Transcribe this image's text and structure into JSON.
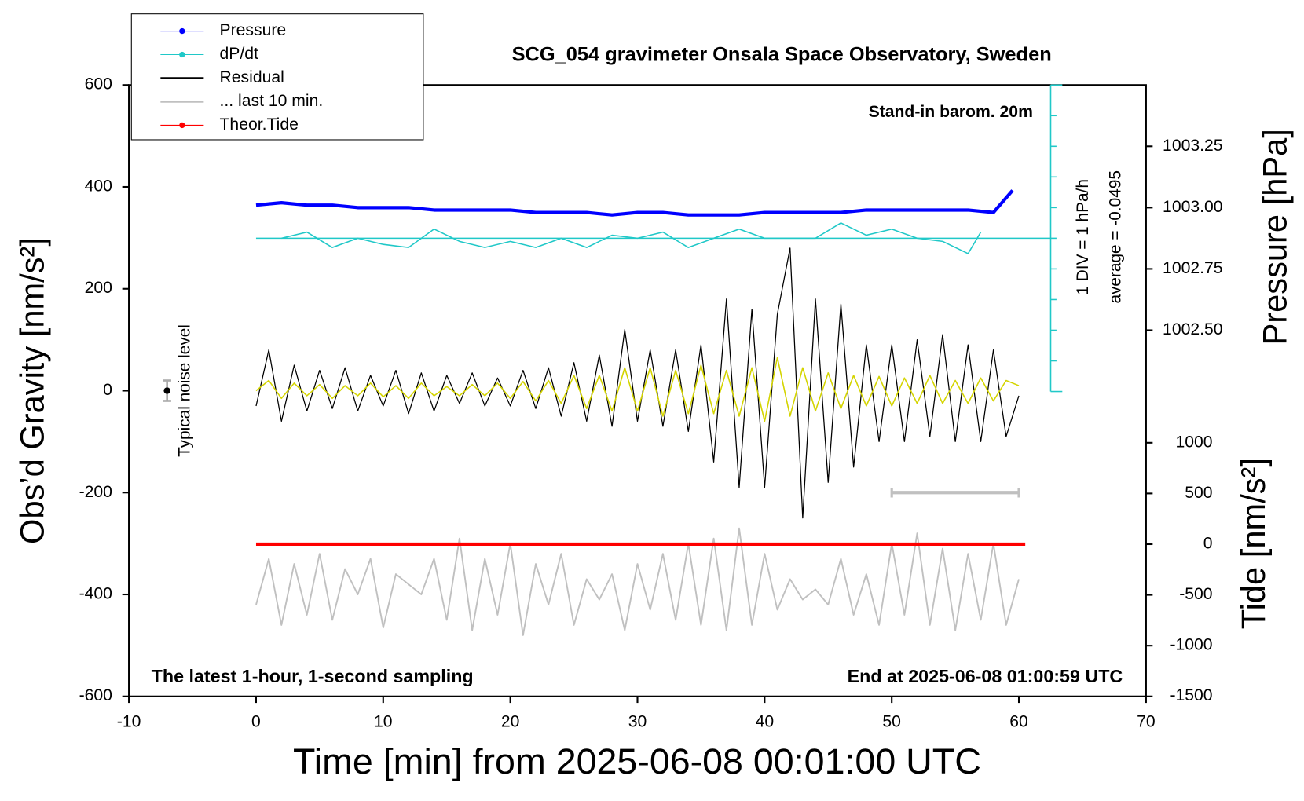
{
  "chart_data": {
    "type": "line",
    "title": "SCG_054 gravimeter Onsala Space Observatory, Sweden",
    "x_label": "Time [min] from 2025-06-08 00:01:00 UTC",
    "y_label": "Obs’d Gravity [nm/s²]",
    "y2_label": "Pressure [hPa]",
    "y3_label": "Tide [nm/s²]",
    "annotations": {
      "barometer": "Stand-in barom. 20m",
      "division": "1 DIV = 1 hPa/h",
      "average": "average = -0.0495",
      "noise": "Typical noise level",
      "sampling": "The latest 1-hour, 1-second sampling",
      "end": "End at 2025-06-08 01:00:59 UTC"
    },
    "xlim": [
      -10,
      70
    ],
    "xticks": [
      -10,
      0,
      10,
      20,
      30,
      40,
      50,
      60,
      70
    ],
    "ylim": [
      -600,
      600
    ],
    "yticks": [
      -600,
      -400,
      -200,
      0,
      200,
      400,
      600
    ],
    "y2lim": [
      1002.25,
      1003.5
    ],
    "y2ticks": [
      {
        "value": 1002.5,
        "label": "1002.50"
      },
      1002.75,
      {
        "value": 1003,
        "label": "1003.00"
      },
      1003.25
    ],
    "y3lim": [
      -1500,
      1000
    ],
    "y3ticks": [
      -1500,
      -1000,
      -500,
      0,
      500,
      1000
    ],
    "dpdt_lim": [
      -5,
      5
    ],
    "dpdt_ticks": [
      -5,
      -4,
      -3,
      -2,
      -1,
      0,
      1,
      2,
      3,
      4,
      5
    ],
    "noise_bar": {
      "x": -7,
      "value": 0,
      "error": 20
    },
    "window_bar": {
      "x": [
        50,
        60
      ],
      "value": -200
    },
    "series": [
      {
        "name": "Pressure",
        "color": "#0000ff",
        "axis": "y2",
        "marker": true,
        "x": [
          0,
          2,
          4,
          6,
          8,
          10,
          12,
          14,
          16,
          18,
          20,
          22,
          24,
          26,
          28,
          30,
          32,
          34,
          36,
          38,
          40,
          42,
          44,
          46,
          48,
          50,
          52,
          54,
          56,
          58,
          59.5
        ],
        "values": [
          1003.01,
          1003.02,
          1003.01,
          1003.01,
          1003.0,
          1003.0,
          1003.0,
          1002.99,
          1002.99,
          1002.99,
          1002.99,
          1002.98,
          1002.98,
          1002.98,
          1002.97,
          1002.98,
          1002.98,
          1002.97,
          1002.97,
          1002.97,
          1002.98,
          1002.98,
          1002.98,
          1002.98,
          1002.99,
          1002.99,
          1002.99,
          1002.99,
          1002.99,
          1002.98,
          1003.07
        ]
      },
      {
        "name": "dP/dt",
        "color": "#20c8c8",
        "axis": "dpdt",
        "marker": true,
        "x": [
          2,
          4,
          6,
          8,
          10,
          12,
          14,
          16,
          18,
          20,
          22,
          24,
          26,
          28,
          30,
          32,
          34,
          36,
          38,
          40,
          42,
          44,
          46,
          48,
          50,
          52,
          54,
          56,
          57
        ],
        "values": [
          0,
          0.2,
          -0.3,
          0,
          -0.2,
          -0.3,
          0.3,
          -0.1,
          -0.3,
          -0.1,
          -0.3,
          0,
          -0.3,
          0.1,
          0,
          0.2,
          -0.3,
          0,
          0.3,
          0,
          0,
          0,
          0.5,
          0.1,
          0.3,
          0,
          -0.1,
          -0.5,
          0.2
        ]
      },
      {
        "name": "Residual",
        "color": "#000000",
        "axis": "y",
        "x": [
          0,
          1,
          2,
          3,
          4,
          5,
          6,
          7,
          8,
          9,
          10,
          11,
          12,
          13,
          14,
          15,
          16,
          17,
          18,
          19,
          20,
          21,
          22,
          23,
          24,
          25,
          26,
          27,
          28,
          29,
          30,
          31,
          32,
          33,
          34,
          35,
          36,
          37,
          38,
          39,
          40,
          41,
          42,
          43,
          44,
          45,
          46,
          47,
          48,
          49,
          50,
          51,
          52,
          53,
          54,
          55,
          56,
          57,
          58,
          59,
          60
        ],
        "values": [
          -30,
          80,
          -60,
          50,
          -40,
          40,
          -35,
          45,
          -40,
          30,
          -30,
          40,
          -45,
          35,
          -40,
          30,
          -25,
          35,
          -30,
          25,
          -30,
          40,
          -35,
          45,
          -50,
          55,
          -60,
          70,
          -70,
          120,
          -60,
          80,
          -70,
          80,
          -80,
          90,
          -140,
          180,
          -190,
          160,
          -190,
          150,
          280,
          -250,
          180,
          -180,
          170,
          -150,
          90,
          -100,
          90,
          -100,
          100,
          -90,
          110,
          -100,
          90,
          -100,
          80,
          -90,
          -10
        ]
      },
      {
        "name": "... last 10 min.",
        "color": "#c0c0c0",
        "axis": "y",
        "x": [
          0,
          1,
          2,
          3,
          4,
          5,
          6,
          7,
          8,
          9,
          10,
          11,
          12,
          13,
          14,
          15,
          16,
          17,
          18,
          19,
          20,
          21,
          22,
          23,
          24,
          25,
          26,
          27,
          28,
          29,
          30,
          31,
          32,
          33,
          34,
          35,
          36,
          37,
          38,
          39,
          40,
          41,
          42,
          43,
          44,
          45,
          46,
          47,
          48,
          49,
          50,
          51,
          52,
          53,
          54,
          55,
          56,
          57,
          58,
          59,
          60
        ],
        "values": [
          -420,
          -330,
          -460,
          -340,
          -440,
          -320,
          -450,
          -350,
          -400,
          -330,
          -465,
          -360,
          -380,
          -400,
          -330,
          -450,
          -290,
          -470,
          -330,
          -440,
          -300,
          -480,
          -340,
          -420,
          -320,
          -460,
          -370,
          -410,
          -360,
          -470,
          -340,
          -430,
          -320,
          -450,
          -300,
          -460,
          -290,
          -470,
          -270,
          -460,
          -320,
          -430,
          -370,
          -410,
          -390,
          -420,
          -330,
          -440,
          -360,
          -460,
          -300,
          -440,
          -280,
          -460,
          -310,
          -470,
          -320,
          -450,
          -300,
          -460,
          -370
        ]
      },
      {
        "name": "Theor.Tide",
        "color": "#ff0000",
        "axis": "y3",
        "marker": true,
        "x": [
          0,
          60.5
        ],
        "values": [
          0,
          0
        ]
      },
      {
        "color": "#d4d400",
        "axis": "y",
        "x": [
          0,
          1,
          2,
          3,
          4,
          5,
          6,
          7,
          8,
          9,
          10,
          11,
          12,
          13,
          14,
          15,
          16,
          17,
          18,
          19,
          20,
          21,
          22,
          23,
          24,
          25,
          26,
          27,
          28,
          29,
          30,
          31,
          32,
          33,
          34,
          35,
          36,
          37,
          38,
          39,
          40,
          41,
          42,
          43,
          44,
          45,
          46,
          47,
          48,
          49,
          50,
          51,
          52,
          53,
          54,
          55,
          56,
          57,
          58,
          59,
          60
        ],
        "values": [
          0,
          20,
          -15,
          15,
          -10,
          12,
          -15,
          10,
          -10,
          15,
          -12,
          10,
          -15,
          15,
          -10,
          8,
          -10,
          12,
          -10,
          15,
          -15,
          18,
          -20,
          20,
          -25,
          30,
          -35,
          30,
          -40,
          45,
          -40,
          45,
          -50,
          40,
          -45,
          50,
          -45,
          40,
          -50,
          45,
          -60,
          65,
          -50,
          45,
          -40,
          35,
          -35,
          30,
          -30,
          28,
          -30,
          25,
          -25,
          30,
          -25,
          20,
          -25,
          25,
          -20,
          20,
          10
        ]
      }
    ]
  }
}
